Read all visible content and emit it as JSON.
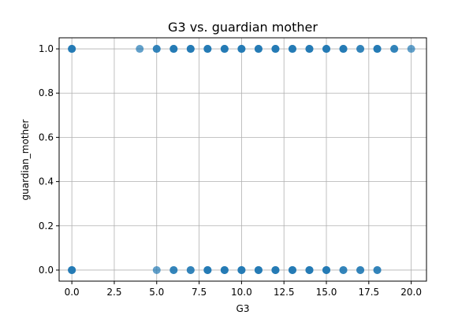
{
  "chart_data": {
    "type": "scatter",
    "title": "G3 vs. guardian mother",
    "xlabel": "G3",
    "ylabel": "guardian_mother",
    "xlim": [
      -0.75,
      20.9
    ],
    "ylim": [
      -0.05,
      1.05
    ],
    "x_ticks": [
      0.0,
      2.5,
      5.0,
      7.5,
      10.0,
      12.5,
      15.0,
      17.5,
      20.0
    ],
    "x_tick_labels": [
      "0.0",
      "2.5",
      "5.0",
      "7.5",
      "10.0",
      "12.5",
      "15.0",
      "17.5",
      "20.0"
    ],
    "y_ticks": [
      0.0,
      0.2,
      0.4,
      0.6,
      0.8,
      1.0
    ],
    "y_tick_labels": [
      "0.0",
      "0.2",
      "0.4",
      "0.6",
      "0.8",
      "1.0"
    ],
    "grid": true,
    "marker_color": "#1f77b4",
    "marker_opacity": 0.7,
    "points": [
      {
        "x": 0,
        "y": 1
      },
      {
        "x": 0,
        "y": 1
      },
      {
        "x": 0,
        "y": 1
      },
      {
        "x": 4,
        "y": 1
      },
      {
        "x": 5,
        "y": 1
      },
      {
        "x": 5,
        "y": 1
      },
      {
        "x": 6,
        "y": 1
      },
      {
        "x": 6,
        "y": 1
      },
      {
        "x": 6,
        "y": 1
      },
      {
        "x": 7,
        "y": 1
      },
      {
        "x": 7,
        "y": 1
      },
      {
        "x": 7,
        "y": 1
      },
      {
        "x": 8,
        "y": 1
      },
      {
        "x": 8,
        "y": 1
      },
      {
        "x": 8,
        "y": 1
      },
      {
        "x": 9,
        "y": 1
      },
      {
        "x": 9,
        "y": 1
      },
      {
        "x": 9,
        "y": 1
      },
      {
        "x": 10,
        "y": 1
      },
      {
        "x": 10,
        "y": 1
      },
      {
        "x": 10,
        "y": 1
      },
      {
        "x": 11,
        "y": 1
      },
      {
        "x": 11,
        "y": 1
      },
      {
        "x": 11,
        "y": 1
      },
      {
        "x": 12,
        "y": 1
      },
      {
        "x": 12,
        "y": 1
      },
      {
        "x": 12,
        "y": 1
      },
      {
        "x": 13,
        "y": 1
      },
      {
        "x": 13,
        "y": 1
      },
      {
        "x": 13,
        "y": 1
      },
      {
        "x": 14,
        "y": 1
      },
      {
        "x": 14,
        "y": 1
      },
      {
        "x": 14,
        "y": 1
      },
      {
        "x": 15,
        "y": 1
      },
      {
        "x": 15,
        "y": 1
      },
      {
        "x": 15,
        "y": 1
      },
      {
        "x": 16,
        "y": 1
      },
      {
        "x": 16,
        "y": 1
      },
      {
        "x": 16,
        "y": 1
      },
      {
        "x": 17,
        "y": 1
      },
      {
        "x": 17,
        "y": 1
      },
      {
        "x": 18,
        "y": 1
      },
      {
        "x": 18,
        "y": 1
      },
      {
        "x": 18,
        "y": 1
      },
      {
        "x": 19,
        "y": 1
      },
      {
        "x": 19,
        "y": 1
      },
      {
        "x": 20,
        "y": 1
      },
      {
        "x": 0,
        "y": 0
      },
      {
        "x": 0,
        "y": 0
      },
      {
        "x": 0,
        "y": 0
      },
      {
        "x": 5,
        "y": 0
      },
      {
        "x": 6,
        "y": 0
      },
      {
        "x": 6,
        "y": 0
      },
      {
        "x": 7,
        "y": 0
      },
      {
        "x": 7,
        "y": 0
      },
      {
        "x": 8,
        "y": 0
      },
      {
        "x": 8,
        "y": 0
      },
      {
        "x": 8,
        "y": 0
      },
      {
        "x": 9,
        "y": 0
      },
      {
        "x": 9,
        "y": 0
      },
      {
        "x": 9,
        "y": 0
      },
      {
        "x": 10,
        "y": 0
      },
      {
        "x": 10,
        "y": 0
      },
      {
        "x": 10,
        "y": 0
      },
      {
        "x": 11,
        "y": 0
      },
      {
        "x": 11,
        "y": 0
      },
      {
        "x": 11,
        "y": 0
      },
      {
        "x": 12,
        "y": 0
      },
      {
        "x": 12,
        "y": 0
      },
      {
        "x": 12,
        "y": 0
      },
      {
        "x": 13,
        "y": 0
      },
      {
        "x": 13,
        "y": 0
      },
      {
        "x": 13,
        "y": 0
      },
      {
        "x": 14,
        "y": 0
      },
      {
        "x": 14,
        "y": 0
      },
      {
        "x": 14,
        "y": 0
      },
      {
        "x": 15,
        "y": 0
      },
      {
        "x": 15,
        "y": 0
      },
      {
        "x": 15,
        "y": 0
      },
      {
        "x": 16,
        "y": 0
      },
      {
        "x": 16,
        "y": 0
      },
      {
        "x": 17,
        "y": 0
      },
      {
        "x": 17,
        "y": 0
      },
      {
        "x": 18,
        "y": 0
      },
      {
        "x": 18,
        "y": 0
      }
    ]
  }
}
